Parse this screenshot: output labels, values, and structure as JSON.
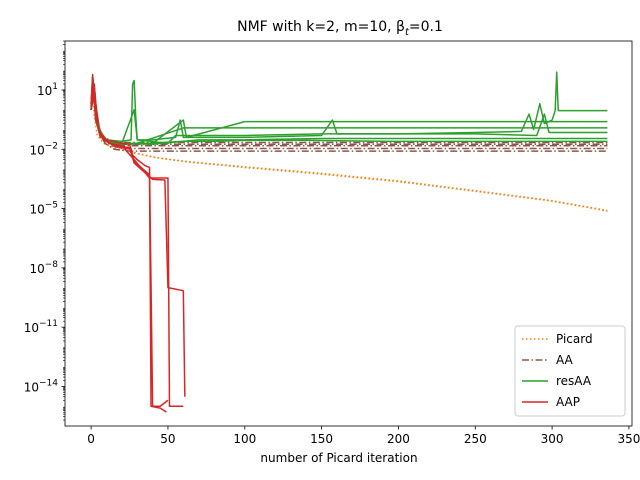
{
  "chart_data": {
    "type": "line",
    "title": "NMF with k=2, m=10,  β",
    "title_subscript": "t",
    "title_suffix": "=0.1",
    "xlabel": "number of Picard iteration",
    "ylabel": "",
    "xlim": [
      -17,
      352
    ],
    "ylim": [
      1e-16,
      3000
    ],
    "yscale": "log",
    "grid": false,
    "legend_position": "lower right",
    "x_ticks": [
      0,
      50,
      100,
      150,
      200,
      250,
      300,
      350
    ],
    "x_tick_labels": [
      "0",
      "50",
      "100",
      "150",
      "200",
      "250",
      "300",
      "350"
    ],
    "y_ticks": [
      1e-14,
      1e-11,
      1e-08,
      1e-05,
      0.01,
      10
    ],
    "y_tick_labels": [
      {
        "base": "10",
        "exp": "−14"
      },
      {
        "base": "10",
        "exp": "−11"
      },
      {
        "base": "10",
        "exp": "−8"
      },
      {
        "base": "10",
        "exp": "−5"
      },
      {
        "base": "10",
        "exp": "−2"
      },
      {
        "base": "10",
        "exp": "1"
      }
    ],
    "series": [
      {
        "name": "Picard",
        "color": "#ff7f0e",
        "style": "dotted",
        "lines": [
          {
            "points": [
              [
                0,
                1.5
              ],
              [
                1,
                50
              ],
              [
                2,
                0.5
              ],
              [
                4,
                0.05
              ],
              [
                8,
                0.02
              ],
              [
                15,
                0.012
              ],
              [
                25,
                0.008
              ],
              [
                40,
                0.004
              ],
              [
                60,
                0.0025
              ],
              [
                80,
                0.0018
              ],
              [
                100,
                0.0013
              ],
              [
                150,
                0.0006
              ],
              [
                200,
                0.00025
              ],
              [
                250,
                8e-05
              ],
              [
                300,
                2.5e-05
              ],
              [
                336,
                8e-06
              ]
            ]
          },
          {
            "points": [
              [
                0,
                1.2
              ],
              [
                1,
                40
              ],
              [
                3,
                0.3
              ],
              [
                6,
                0.04
              ],
              [
                12,
                0.015
              ],
              [
                20,
                0.009
              ],
              [
                30,
                0.006
              ],
              [
                45,
                0.0035
              ],
              [
                65,
                0.0022
              ],
              [
                100,
                0.0012
              ],
              [
                150,
                0.00055
              ],
              [
                200,
                0.00023
              ],
              [
                250,
                7.5e-05
              ],
              [
                300,
                2.4e-05
              ],
              [
                336,
                7.5e-06
              ]
            ]
          }
        ]
      },
      {
        "name": "AA",
        "color": "#8c564b",
        "style": "dashdot",
        "lines": [
          {
            "points": [
              [
                0,
                2
              ],
              [
                1,
                40
              ],
              [
                3,
                0.4
              ],
              [
                6,
                0.06
              ],
              [
                10,
                0.035
              ],
              [
                15,
                0.025
              ],
              [
                20,
                0.022
              ],
              [
                336,
                0.022
              ]
            ]
          },
          {
            "points": [
              [
                0,
                1
              ],
              [
                1,
                30
              ],
              [
                3,
                0.3
              ],
              [
                6,
                0.04
              ],
              [
                10,
                0.025
              ],
              [
                15,
                0.02
              ],
              [
                20,
                0.018
              ],
              [
                336,
                0.018
              ]
            ]
          },
          {
            "points": [
              [
                0,
                1.5
              ],
              [
                2,
                20
              ],
              [
                4,
                0.2
              ],
              [
                7,
                0.05
              ],
              [
                12,
                0.02
              ],
              [
                20,
                0.015
              ],
              [
                336,
                0.015
              ]
            ]
          },
          {
            "points": [
              [
                0,
                1
              ],
              [
                2,
                10
              ],
              [
                5,
                0.1
              ],
              [
                8,
                0.03
              ],
              [
                14,
                0.015
              ],
              [
                20,
                0.011
              ],
              [
                336,
                0.011
              ]
            ]
          },
          {
            "points": [
              [
                0,
                1
              ],
              [
                2,
                8
              ],
              [
                5,
                0.08
              ],
              [
                9,
                0.02
              ],
              [
                15,
                0.01
              ],
              [
                25,
                0.008
              ],
              [
                336,
                0.008
              ]
            ]
          }
        ]
      },
      {
        "name": "resAA",
        "color": "#2ca02c",
        "style": "solid",
        "lines": [
          {
            "points": [
              [
                0,
                2
              ],
              [
                1,
                50
              ],
              [
                3,
                0.5
              ],
              [
                6,
                0.06
              ],
              [
                10,
                0.03
              ],
              [
                20,
                0.025
              ],
              [
                26,
                0.03
              ],
              [
                27,
                20
              ],
              [
                28,
                30
              ],
              [
                29,
                0.5
              ],
              [
                30,
                0.03
              ],
              [
                40,
                0.03
              ],
              [
                55,
                0.04
              ],
              [
                58,
                0.3
              ],
              [
                60,
                0.04
              ],
              [
                100,
                0.04
              ],
              [
                150,
                0.05
              ],
              [
                157,
                0.3
              ],
              [
                160,
                0.06
              ],
              [
                200,
                0.06
              ],
              [
                250,
                0.07
              ],
              [
                280,
                0.08
              ],
              [
                285,
                0.6
              ],
              [
                288,
                0.1
              ],
              [
                292,
                2
              ],
              [
                295,
                0.2
              ],
              [
                300,
                0.3
              ],
              [
                302,
                0.9
              ],
              [
                303,
                80
              ],
              [
                304,
                0.9
              ],
              [
                336,
                0.9
              ]
            ]
          },
          {
            "points": [
              [
                0,
                1
              ],
              [
                1,
                30
              ],
              [
                3,
                0.3
              ],
              [
                6,
                0.05
              ],
              [
                10,
                0.025
              ],
              [
                20,
                0.02
              ],
              [
                40,
                0.02
              ],
              [
                60,
                0.3
              ],
              [
                62,
                0.04
              ],
              [
                100,
                0.25
              ],
              [
                200,
                0.25
              ],
              [
                336,
                0.25
              ]
            ]
          },
          {
            "points": [
              [
                0,
                1.5
              ],
              [
                2,
                20
              ],
              [
                4,
                0.2
              ],
              [
                8,
                0.04
              ],
              [
                15,
                0.02
              ],
              [
                30,
                0.02
              ],
              [
                60,
                0.12
              ],
              [
                100,
                0.12
              ],
              [
                200,
                0.12
              ],
              [
                300,
                0.12
              ],
              [
                336,
                0.12
              ]
            ]
          },
          {
            "points": [
              [
                0,
                1
              ],
              [
                2,
                10
              ],
              [
                5,
                0.1
              ],
              [
                10,
                0.03
              ],
              [
                20,
                0.02
              ],
              [
                28,
                1
              ],
              [
                30,
                0.03
              ],
              [
                50,
                0.02
              ],
              [
                55,
                0.05
              ],
              [
                100,
                0.05
              ],
              [
                150,
                0.06
              ],
              [
                200,
                0.06
              ],
              [
                250,
                0.06
              ],
              [
                290,
                0.05
              ],
              [
                295,
                0.6
              ],
              [
                298,
                0.07
              ],
              [
                336,
                0.07
              ]
            ]
          },
          {
            "points": [
              [
                0,
                1
              ],
              [
                2,
                8
              ],
              [
                5,
                0.08
              ],
              [
                10,
                0.025
              ],
              [
                20,
                0.02
              ],
              [
                40,
                0.018
              ],
              [
                70,
                0.03
              ],
              [
                100,
                0.03
              ],
              [
                150,
                0.035
              ],
              [
                200,
                0.035
              ],
              [
                250,
                0.035
              ],
              [
                336,
                0.035
              ]
            ]
          },
          {
            "points": [
              [
                0,
                1
              ],
              [
                2,
                6
              ],
              [
                6,
                0.06
              ],
              [
                12,
                0.02
              ],
              [
                25,
                0.018
              ],
              [
                60,
                0.025
              ],
              [
                80,
                0.025
              ],
              [
                100,
                0.028
              ],
              [
                140,
                0.028
              ],
              [
                200,
                0.025
              ],
              [
                260,
                0.025
              ],
              [
                336,
                0.025
              ]
            ]
          }
        ]
      },
      {
        "name": "AAP",
        "color": "#d62728",
        "style": "solid",
        "lines": [
          {
            "points": [
              [
                0,
                2
              ],
              [
                1,
                60
              ],
              [
                3,
                0.5
              ],
              [
                6,
                0.05
              ],
              [
                10,
                0.03
              ],
              [
                20,
                0.02
              ],
              [
                25,
                0.018
              ],
              [
                27,
                0.005
              ],
              [
                30,
                0.003
              ],
              [
                35,
                0.0015
              ],
              [
                38,
                0.0012
              ],
              [
                40,
                1e-15
              ],
              [
                45,
                1e-15
              ],
              [
                50,
                2e-15
              ]
            ]
          },
          {
            "points": [
              [
                0,
                1
              ],
              [
                1,
                40
              ],
              [
                3,
                0.3
              ],
              [
                7,
                0.04
              ],
              [
                12,
                0.02
              ],
              [
                20,
                0.015
              ],
              [
                28,
                0.003
              ],
              [
                38,
                0.00035
              ],
              [
                50,
                0.00035
              ],
              [
                51,
                1e-15
              ],
              [
                55,
                1e-15
              ],
              [
                60,
                1e-15
              ]
            ]
          },
          {
            "points": [
              [
                0,
                1.5
              ],
              [
                2,
                20
              ],
              [
                4,
                0.2
              ],
              [
                8,
                0.03
              ],
              [
                15,
                0.015
              ],
              [
                25,
                0.012
              ],
              [
                28,
                0.002
              ],
              [
                40,
                0.0003
              ],
              [
                48,
                0.00028
              ],
              [
                50,
                1e-09
              ],
              [
                60,
                7e-10
              ],
              [
                61,
                3e-15
              ]
            ]
          },
          {
            "points": [
              [
                0,
                1
              ],
              [
                2,
                10
              ],
              [
                5,
                0.1
              ],
              [
                10,
                0.025
              ],
              [
                18,
                0.013
              ],
              [
                26,
                0.01
              ],
              [
                28,
                0.0025
              ],
              [
                38,
                0.0005
              ],
              [
                39,
                1e-15
              ],
              [
                45,
                8e-16
              ],
              [
                49,
                5e-16
              ]
            ]
          }
        ]
      }
    ]
  }
}
